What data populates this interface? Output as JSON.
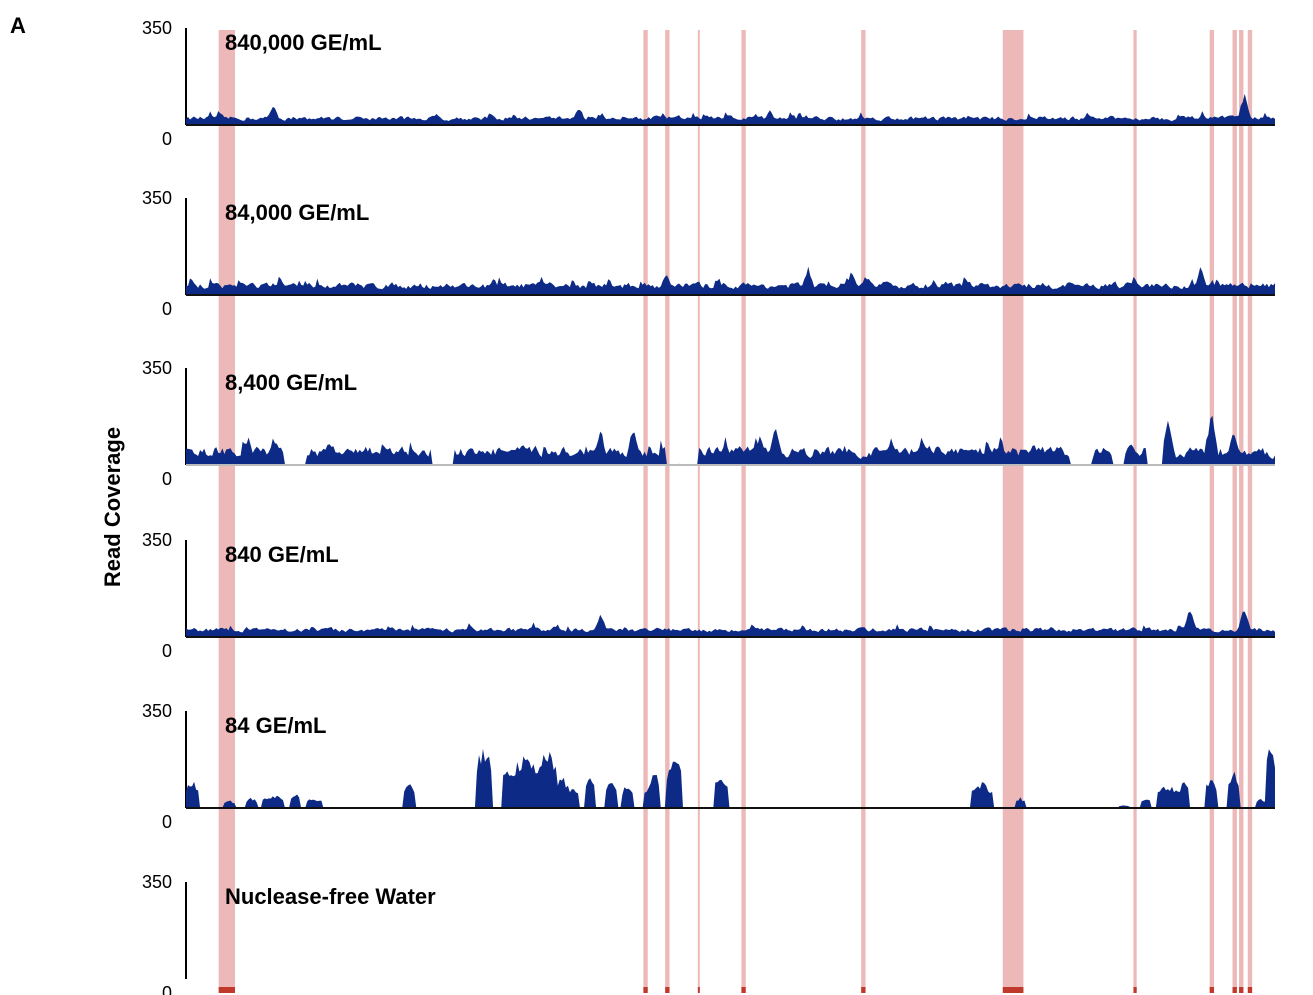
{
  "panel_label": "A",
  "chart_data": {
    "type": "area",
    "ylabel": "Read Coverage",
    "ylim": [
      0,
      350
    ],
    "y_ticks": [
      "0",
      "350"
    ],
    "colors": {
      "coverage": "#0d2b86",
      "highlight": "#e69a9a",
      "marker": "#c0392b",
      "axis": "#000000"
    },
    "highlight_positions": [
      0.03,
      0.42,
      0.44,
      0.47,
      0.51,
      0.62,
      0.75,
      0.87,
      0.94,
      0.961,
      0.967,
      0.975
    ],
    "highlight_widths": [
      0.015,
      0.004,
      0.004,
      0.001,
      0.004,
      0.004,
      0.019,
      0.003,
      0.004,
      0.004,
      0.004,
      0.004
    ],
    "tracks": [
      {
        "name": "840,000 GE/mL",
        "mean": 30,
        "variability": 0.55,
        "spikes": [
          [
            0.08,
            80
          ],
          [
            0.36,
            75
          ],
          [
            0.97,
            120
          ]
        ],
        "gaps": []
      },
      {
        "name": "84,000 GE/mL",
        "mean": 40,
        "variability": 0.6,
        "spikes": [
          [
            0.44,
            90
          ],
          [
            0.57,
            110
          ],
          [
            0.61,
            95
          ],
          [
            0.93,
            110
          ]
        ],
        "gaps": []
      },
      {
        "name": "8,400 GE/mL",
        "mean": 45,
        "variability": 0.9,
        "spikes": [
          [
            0.38,
            140
          ],
          [
            0.41,
            150
          ],
          [
            0.54,
            160
          ],
          [
            0.9,
            190
          ],
          [
            0.94,
            200
          ],
          [
            0.96,
            130
          ]
        ],
        "gaps": [
          [
            0.09,
            0.11
          ],
          [
            0.225,
            0.245
          ],
          [
            0.44,
            0.47
          ],
          [
            0.81,
            0.83
          ],
          [
            0.85,
            0.86
          ],
          [
            0.88,
            0.895
          ]
        ]
      },
      {
        "name": "840 GE/mL",
        "mean": 35,
        "variability": 0.45,
        "spikes": [
          [
            0.38,
            100
          ],
          [
            0.92,
            110
          ],
          [
            0.97,
            115
          ]
        ],
        "gaps": []
      },
      {
        "name": "84 GE/mL",
        "mean": 70,
        "variability": 1.0,
        "segments": [
          [
            0.0,
            0.012,
            110
          ],
          [
            0.035,
            0.045,
            30
          ],
          [
            0.055,
            0.065,
            40
          ],
          [
            0.07,
            0.09,
            50
          ],
          [
            0.095,
            0.105,
            60
          ],
          [
            0.11,
            0.125,
            40
          ],
          [
            0.2,
            0.21,
            100
          ],
          [
            0.265,
            0.28,
            250
          ],
          [
            0.29,
            0.33,
            190
          ],
          [
            0.32,
            0.34,
            230
          ],
          [
            0.34,
            0.35,
            130
          ],
          [
            0.35,
            0.36,
            90
          ],
          [
            0.365,
            0.375,
            120
          ],
          [
            0.385,
            0.395,
            120
          ],
          [
            0.4,
            0.41,
            100
          ],
          [
            0.42,
            0.43,
            90
          ],
          [
            0.425,
            0.435,
            140
          ],
          [
            0.44,
            0.455,
            200
          ],
          [
            0.485,
            0.497,
            140
          ],
          [
            0.72,
            0.74,
            100
          ],
          [
            0.76,
            0.77,
            40
          ],
          [
            0.855,
            0.865,
            10
          ],
          [
            0.875,
            0.885,
            40
          ],
          [
            0.89,
            0.91,
            90
          ],
          [
            0.91,
            0.92,
            110
          ],
          [
            0.935,
            0.945,
            130
          ],
          [
            0.955,
            0.965,
            150
          ],
          [
            0.98,
            0.99,
            40
          ],
          [
            0.99,
            1.0,
            260
          ]
        ]
      },
      {
        "name": "Nuclease-free Water",
        "mean": 0,
        "variability": 0,
        "spikes": [],
        "gaps": [
          [
            0,
            1
          ]
        ]
      }
    ]
  }
}
